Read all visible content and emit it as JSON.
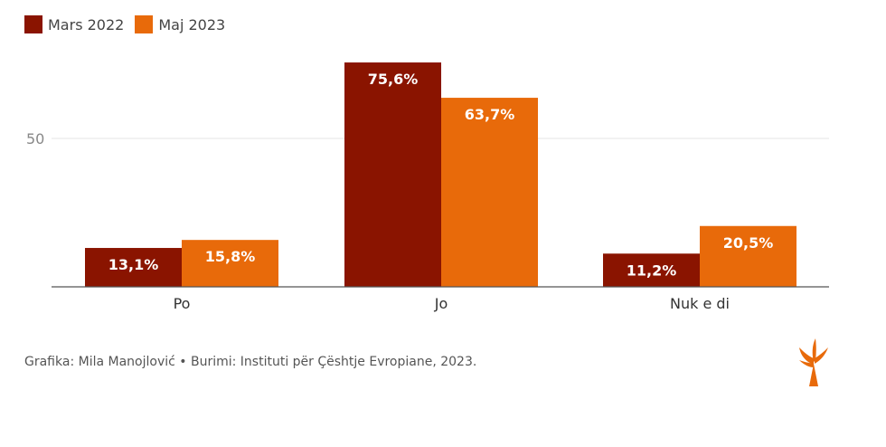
{
  "legend": {
    "items": [
      {
        "label": "Mars 2022",
        "color": "#8a1400"
      },
      {
        "label": "Maj 2023",
        "color": "#e86a0a"
      }
    ]
  },
  "chart_data": {
    "type": "bar",
    "categories": [
      "Po",
      "Jo",
      "Nuk e di"
    ],
    "series": [
      {
        "name": "Mars 2022",
        "values": [
          13.1,
          75.6,
          11.2
        ],
        "labels": [
          "13,1%",
          "75,6%",
          "11,2%"
        ],
        "color": "#8a1400"
      },
      {
        "name": "Maj 2023",
        "values": [
          15.8,
          63.7,
          20.5
        ],
        "labels": [
          "15,8%",
          "63,7%",
          "20,5%"
        ],
        "color": "#e86a0a"
      }
    ],
    "yticks": [
      50
    ],
    "ytick_labels": [
      "50"
    ],
    "ylim": [
      0,
      80
    ],
    "grid": true,
    "title": "",
    "xlabel": "",
    "ylabel": "",
    "legend_position": "top-left"
  },
  "footer": {
    "credit": "Grafika: Mila Manojlović • Burimi: Instituti për Çështje Evropiane, 2023."
  },
  "logo": {
    "icon": "torch-logo-icon",
    "color": "#e86a0a"
  }
}
